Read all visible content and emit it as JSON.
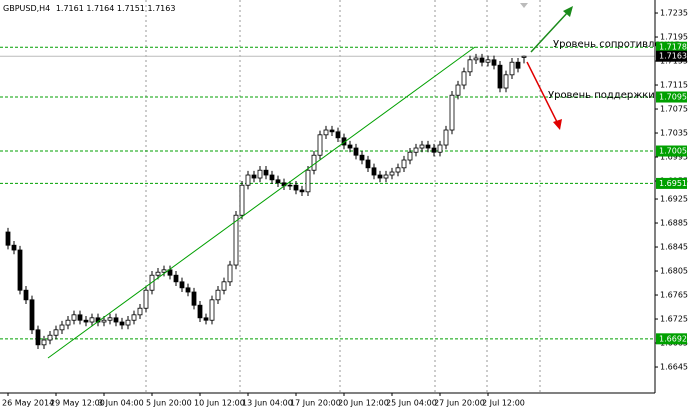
{
  "chart_data": {
    "type": "candlestick",
    "symbol": "GBPUSD,H4",
    "categories": [
      "26 May 2014",
      null,
      null,
      null,
      null,
      null,
      null,
      null,
      "29 May 12:00",
      null,
      null,
      null,
      null,
      null,
      null,
      null,
      "3 Jun 04:00",
      null,
      null,
      null,
      null,
      null,
      null,
      null,
      "5 Jun 20:00",
      null,
      null,
      null,
      null,
      null,
      null,
      null,
      "10 Jun 12:00",
      null,
      null,
      null,
      null,
      null,
      null,
      null,
      "13 Jun 04:00",
      null,
      null,
      null,
      null,
      null,
      null,
      null,
      "17 Jun 20:00",
      null,
      null,
      null,
      null,
      null,
      null,
      null,
      "20 Jun 12:00",
      null,
      null,
      null,
      null,
      null,
      null,
      null,
      "25 Jun 04:00",
      null,
      null,
      null,
      null,
      null,
      null,
      null,
      "27 Jun 20:00",
      null,
      null,
      null,
      null,
      null,
      null,
      null,
      "2 Jul 12:00",
      null,
      null,
      null,
      null,
      null,
      null
    ],
    "open": [
      1.687,
      1.6848,
      1.684,
      1.6773,
      1.6757,
      1.6707,
      1.6682,
      1.669,
      1.6698,
      1.6707,
      1.6715,
      1.6723,
      1.6732,
      1.6723,
      1.672,
      1.6727,
      1.672,
      1.6723,
      1.6727,
      1.672,
      1.6715,
      1.6723,
      1.6732,
      1.6743,
      1.6773,
      1.6798,
      1.6803,
      1.6807,
      1.6798,
      1.6787,
      1.6777,
      1.677,
      1.6748,
      1.6727,
      1.6723,
      1.6757,
      1.6773,
      1.6787,
      1.6815,
      1.6898,
      1.6948,
      1.6965,
      1.696,
      1.6973,
      1.6965,
      1.6957,
      1.6952,
      1.6947,
      1.6948,
      1.694,
      1.6937,
      1.6973,
      1.6998,
      1.7032,
      1.704,
      1.7037,
      1.7027,
      1.7015,
      1.701,
      1.6998,
      1.699,
      1.6977,
      1.6965,
      1.696,
      1.6965,
      1.697,
      1.6977,
      1.699,
      1.7003,
      1.701,
      1.7015,
      1.701,
      1.7003,
      1.7015,
      1.704,
      1.7098,
      1.7115,
      1.7137,
      1.7157,
      1.716,
      1.7153,
      1.7157,
      1.7148,
      1.711,
      1.7132,
      1.7153,
      1.7161
    ],
    "high": [
      1.6877,
      1.6855,
      1.6847,
      1.678,
      1.6764,
      1.6714,
      1.6697,
      1.6705,
      1.6714,
      1.6722,
      1.673,
      1.6739,
      1.6739,
      1.673,
      1.6734,
      1.6734,
      1.673,
      1.6734,
      1.6734,
      1.6727,
      1.673,
      1.6739,
      1.675,
      1.678,
      1.6805,
      1.681,
      1.6814,
      1.6814,
      1.6805,
      1.6794,
      1.6784,
      1.6777,
      1.6755,
      1.6734,
      1.6764,
      1.678,
      1.6794,
      1.6822,
      1.6905,
      1.6955,
      1.6972,
      1.6972,
      1.698,
      1.698,
      1.6972,
      1.6964,
      1.6959,
      1.6955,
      1.6955,
      1.6947,
      1.698,
      1.7005,
      1.7039,
      1.7047,
      1.7047,
      1.7044,
      1.7034,
      1.7022,
      1.7017,
      1.7005,
      1.6997,
      1.6984,
      1.6972,
      1.6972,
      1.6977,
      1.6984,
      1.6997,
      1.701,
      1.7017,
      1.7022,
      1.7022,
      1.7017,
      1.7022,
      1.7047,
      1.7105,
      1.7122,
      1.7144,
      1.7164,
      1.7167,
      1.7167,
      1.7164,
      1.7164,
      1.7155,
      1.7139,
      1.716,
      1.716,
      1.7164
    ],
    "low": [
      1.6841,
      1.6833,
      1.6766,
      1.675,
      1.67,
      1.6675,
      1.6675,
      1.6683,
      1.6691,
      1.67,
      1.6708,
      1.6716,
      1.6716,
      1.6713,
      1.6713,
      1.6713,
      1.6713,
      1.6716,
      1.6713,
      1.6708,
      1.6708,
      1.6716,
      1.6725,
      1.6736,
      1.6766,
      1.6791,
      1.6796,
      1.6791,
      1.678,
      1.677,
      1.6763,
      1.6741,
      1.672,
      1.6716,
      1.6716,
      1.675,
      1.6766,
      1.678,
      1.6808,
      1.6891,
      1.6941,
      1.6953,
      1.6953,
      1.6958,
      1.695,
      1.6945,
      1.694,
      1.694,
      1.6933,
      1.693,
      1.693,
      1.6966,
      1.6991,
      1.7025,
      1.703,
      1.702,
      1.7008,
      1.7003,
      1.6991,
      1.6983,
      1.697,
      1.6958,
      1.6953,
      1.6953,
      1.6958,
      1.6963,
      1.697,
      1.6983,
      1.6996,
      1.7003,
      1.7003,
      1.6996,
      1.6996,
      1.7008,
      1.7033,
      1.7091,
      1.7108,
      1.713,
      1.715,
      1.7146,
      1.7146,
      1.7141,
      1.7103,
      1.7103,
      1.7125,
      1.7136,
      1.7151
    ],
    "close": [
      1.6848,
      1.684,
      1.6773,
      1.6757,
      1.6707,
      1.6682,
      1.669,
      1.6698,
      1.6707,
      1.6715,
      1.6723,
      1.6732,
      1.6723,
      1.672,
      1.6727,
      1.672,
      1.6723,
      1.6727,
      1.672,
      1.6715,
      1.6723,
      1.6732,
      1.6743,
      1.6773,
      1.6798,
      1.6803,
      1.6807,
      1.6798,
      1.6787,
      1.6777,
      1.677,
      1.6748,
      1.6727,
      1.6723,
      1.6757,
      1.6773,
      1.6787,
      1.6815,
      1.6898,
      1.6948,
      1.6965,
      1.696,
      1.6973,
      1.6965,
      1.6957,
      1.6952,
      1.6947,
      1.6948,
      1.694,
      1.6937,
      1.6973,
      1.6998,
      1.7032,
      1.704,
      1.7037,
      1.7027,
      1.7015,
      1.701,
      1.6998,
      1.699,
      1.6977,
      1.6965,
      1.696,
      1.6965,
      1.697,
      1.6977,
      1.699,
      1.7003,
      1.701,
      1.7015,
      1.701,
      1.7003,
      1.7015,
      1.704,
      1.7098,
      1.7115,
      1.7137,
      1.7157,
      1.716,
      1.7153,
      1.7157,
      1.7148,
      1.711,
      1.7132,
      1.7153,
      1.7143,
      1.7163
    ],
    "bull_color": "#ffffff",
    "bear_color": "#000000",
    "outline_color": "#000000",
    "ylim": [
      1.66017,
      1.72567
    ],
    "yticks": [
      1.7235,
      1.7195,
      1.7155,
      1.7115,
      1.7075,
      1.7035,
      1.6995,
      1.6955,
      1.6925,
      1.6885,
      1.6845,
      1.6805,
      1.6765,
      1.6725,
      1.6685,
      1.6645
    ],
    "levels": [
      1.7178,
      1.7095,
      1.7005,
      1.6951,
      1.6692
    ],
    "level_color": "#00a000",
    "current_price": 1.7163,
    "annotations": [
      "Уровень сопротивления",
      "Уровень поддержки"
    ]
  }
}
